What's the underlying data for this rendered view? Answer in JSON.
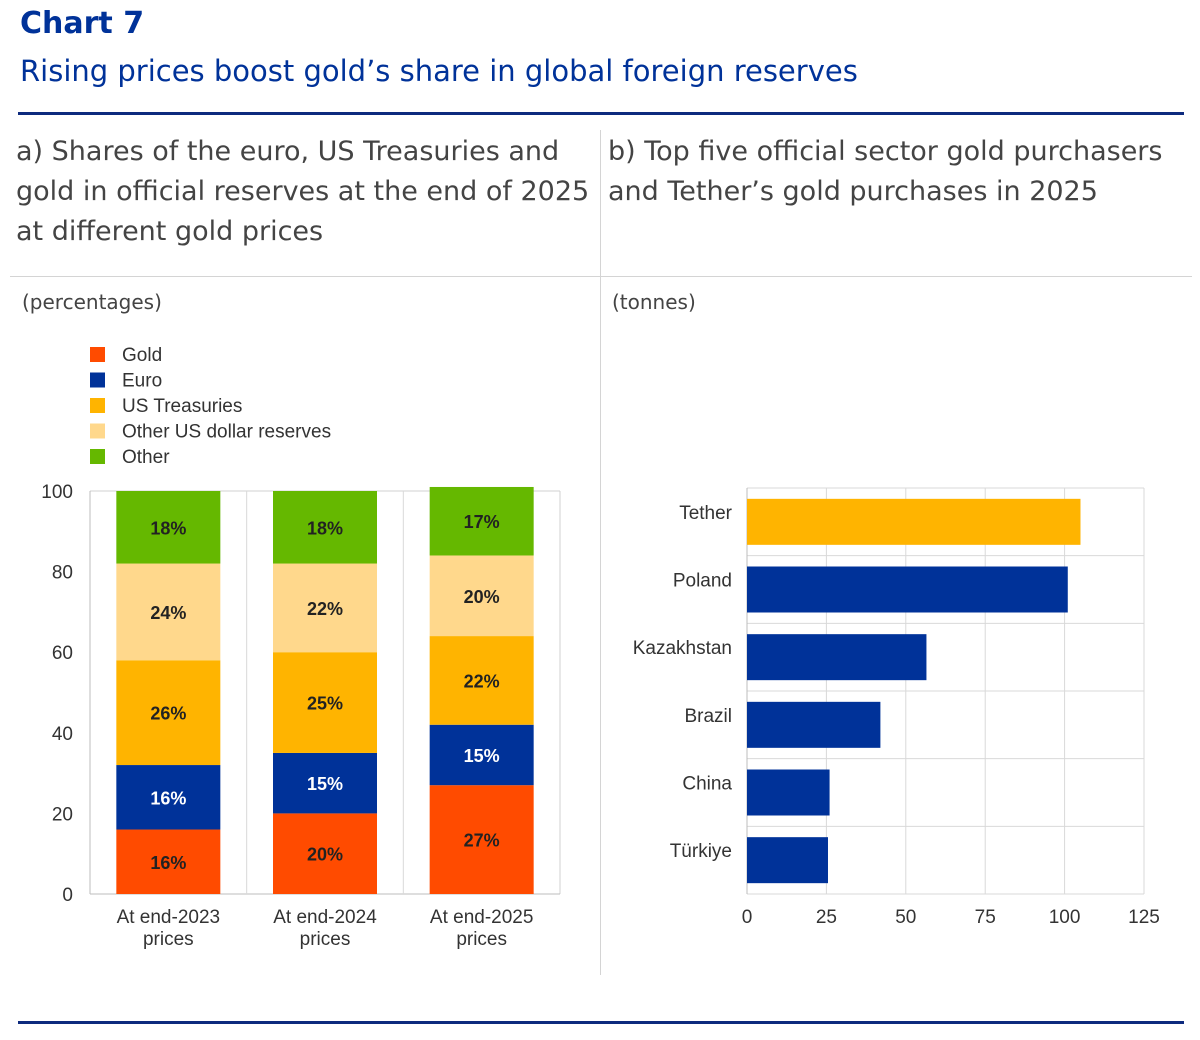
{
  "header": {
    "chart_number": "Chart 7",
    "title": "Rising prices boost gold’s share in global foreign reserves"
  },
  "panel_a": {
    "title_lines": [
      "a) Shares of the euro, US Treasuries and",
      "gold in official reserves at the end of 2025",
      "at different gold prices"
    ],
    "unit": "(percentages)"
  },
  "panel_b": {
    "title_lines": [
      "b) Top five official sector gold purchasers",
      "and Tether’s gold purchases in 2025"
    ],
    "unit": "(tonnes)"
  },
  "chart_data": [
    {
      "type": "bar",
      "stacked": true,
      "orientation": "vertical",
      "categories": [
        [
          "At end-2023",
          "prices"
        ],
        [
          "At end-2024",
          "prices"
        ],
        [
          "At end-2025",
          "prices"
        ]
      ],
      "series": [
        {
          "name": "Gold",
          "color": "#ff4b00",
          "values": [
            16,
            20,
            27
          ],
          "labels": [
            "16%",
            "20%",
            "27%"
          ]
        },
        {
          "name": "Euro",
          "color": "#003299",
          "values": [
            16,
            15,
            15
          ],
          "labels": [
            "16%",
            "15%",
            "15%"
          ]
        },
        {
          "name": "US Treasuries",
          "color": "#ffb400",
          "values": [
            26,
            25,
            22
          ],
          "labels": [
            "26%",
            "25%",
            "22%"
          ]
        },
        {
          "name": "Other US dollar reserves",
          "color": "#ffd88c",
          "values": [
            24,
            22,
            20
          ],
          "labels": [
            "24%",
            "22%",
            "20%"
          ]
        },
        {
          "name": "Other",
          "color": "#65b800",
          "values": [
            18,
            18,
            17
          ],
          "labels": [
            "18%",
            "18%",
            "17%"
          ]
        }
      ],
      "ylim": [
        0,
        100
      ],
      "yticks": [
        0,
        20,
        40,
        60,
        80,
        100
      ],
      "grid": "vertical",
      "legend": "top-left"
    },
    {
      "type": "bar",
      "orientation": "horizontal",
      "categories": [
        "Tether",
        "Poland",
        "Kazakhstan",
        "Brazil",
        "China",
        "Türkiye"
      ],
      "values": [
        105,
        101,
        56.5,
        42,
        26,
        25.5
      ],
      "colors": [
        "#ffb400",
        "#003299",
        "#003299",
        "#003299",
        "#003299",
        "#003299"
      ],
      "xlim": [
        0,
        125
      ],
      "xticks": [
        0,
        25,
        50,
        75,
        100,
        125
      ],
      "grid": "both"
    }
  ]
}
